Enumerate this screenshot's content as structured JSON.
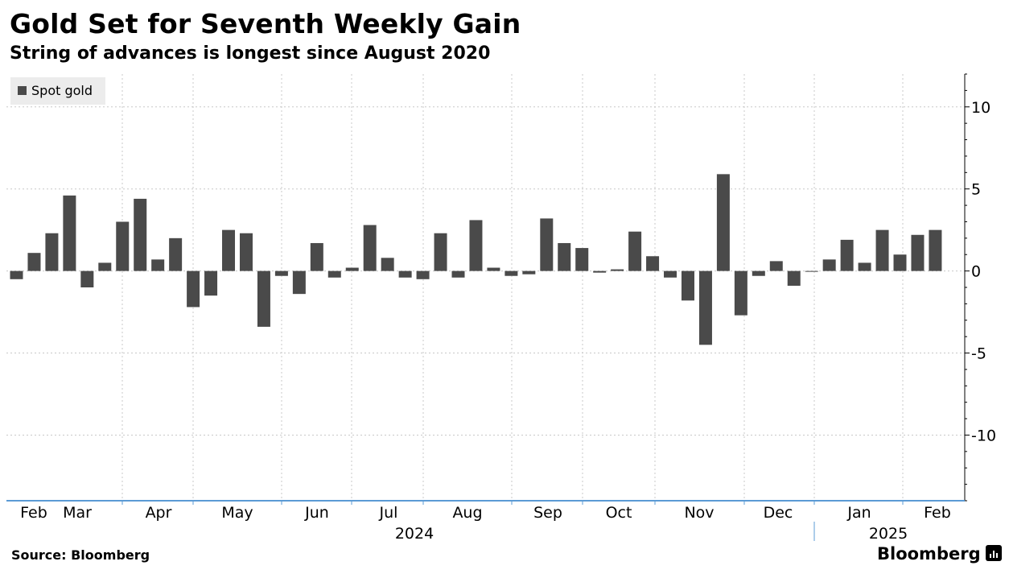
{
  "title": "Gold Set for Seventh Weekly Gain",
  "subtitle": "String of advances is longest since August 2020",
  "legend": {
    "label": "Spot gold"
  },
  "source": "Source: Bloomberg",
  "brand": "Bloomberg",
  "colors": {
    "bar": "#4a4a4a",
    "grid": "#c8c8c8",
    "axis": "#5b9bd5",
    "legend_bg": "#ececec"
  },
  "chart_data": {
    "type": "bar",
    "series": [
      {
        "name": "Spot gold",
        "values": [
          -0.5,
          1.1,
          2.3,
          4.6,
          -1.0,
          0.5,
          3.0,
          4.4,
          0.7,
          2.0,
          -2.2,
          -1.5,
          2.5,
          2.3,
          -3.4,
          -0.3,
          -1.4,
          1.7,
          -0.4,
          0.2,
          2.8,
          0.8,
          -0.4,
          -0.5,
          2.3,
          -0.4,
          3.1,
          0.2,
          -0.3,
          -0.2,
          3.2,
          1.7,
          1.4,
          -0.1,
          0.1,
          2.4,
          0.9,
          -0.4,
          -1.8,
          -4.5,
          5.9,
          -2.7,
          -0.3,
          0.6,
          -0.9,
          -0.05,
          0.7,
          1.9,
          0.5,
          2.5,
          1.0,
          2.2,
          2.5
        ]
      }
    ],
    "ylim": [
      -14,
      12
    ],
    "yticks": [
      10,
      5,
      0,
      -5,
      -10
    ],
    "ytick_labels": [
      "10",
      "5",
      "0",
      "-5",
      "-10"
    ],
    "x_month_labels": [
      "Feb",
      "Mar",
      "Apr",
      "May",
      "Jun",
      "Jul",
      "Aug",
      "Sep",
      "Oct",
      "Nov",
      "Dec",
      "Jan",
      "Feb"
    ],
    "x_year_labels": [
      "2024",
      "2025"
    ],
    "grid": true,
    "legend_position": "top-left"
  }
}
